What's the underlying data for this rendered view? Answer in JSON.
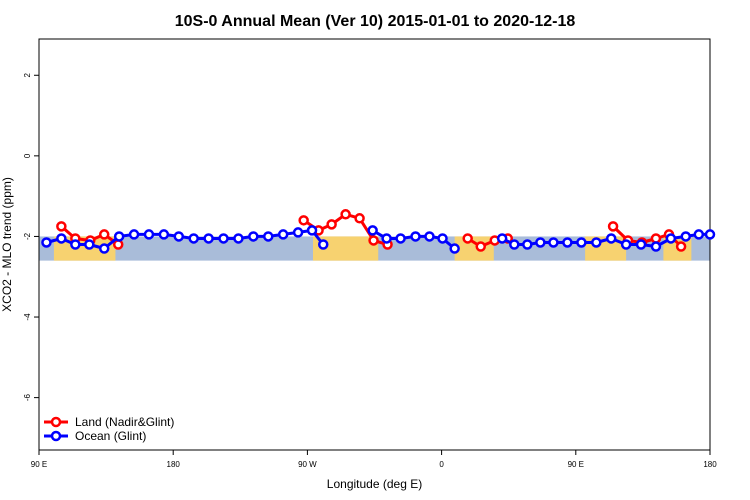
{
  "chart_data": {
    "type": "line",
    "title": "10S-0 Annual Mean (Ver 10)   2015-01-01 to 2020-12-18",
    "xlabel": "Longitude (deg E)",
    "ylabel": "XCO2 - MLO trend (ppm)",
    "xlim": [
      90,
      450
    ],
    "ylim": [
      -7.3,
      2.9
    ],
    "x_ticks": [
      {
        "value": 90,
        "label": "90 E"
      },
      {
        "value": 162,
        "label": "180"
      },
      {
        "value": 234,
        "label": "90 W"
      },
      {
        "value": 306,
        "label": "0"
      },
      {
        "value": 378,
        "label": "90 E"
      },
      {
        "value": 450,
        "label": "180"
      }
    ],
    "y_ticks": [
      {
        "value": 2,
        "label": "2"
      },
      {
        "value": 0,
        "label": "0"
      },
      {
        "value": -2,
        "label": "-2"
      },
      {
        "value": -4,
        "label": "-4"
      },
      {
        "value": -6,
        "label": "-6"
      }
    ],
    "background_band": {
      "y_range": [
        -2.6,
        -2.0
      ],
      "ocean_color": "#a9bcd9",
      "land_color": "#f7d270",
      "land_segments": [
        [
          98,
          131
        ],
        [
          237,
          272
        ],
        [
          313,
          334
        ],
        [
          383,
          405
        ],
        [
          425,
          440
        ]
      ]
    },
    "legend_position": "bottom-left",
    "series": [
      {
        "name": "Land (Nadir&Glint)",
        "color": "#ff0000",
        "points": [
          {
            "x": 102,
            "y": -1.75
          },
          {
            "x": 109.5,
            "y": -2.05
          },
          {
            "x": 117.5,
            "y": -2.1
          },
          {
            "x": 125,
            "y": -1.95
          },
          {
            "x": 132.5,
            "y": -2.2
          },
          null,
          {
            "x": 232,
            "y": -1.6
          },
          {
            "x": 240,
            "y": -1.85
          },
          {
            "x": 247,
            "y": -1.7
          },
          {
            "x": 254.5,
            "y": -1.45
          },
          {
            "x": 262,
            "y": -1.55
          },
          {
            "x": 269.5,
            "y": -2.1
          },
          {
            "x": 277,
            "y": -2.2
          },
          null,
          {
            "x": 320,
            "y": -2.05
          },
          {
            "x": 327,
            "y": -2.25
          },
          {
            "x": 334.5,
            "y": -2.1
          },
          {
            "x": 341.5,
            "y": -2.05
          },
          null,
          {
            "x": 398,
            "y": -1.75
          },
          {
            "x": 406,
            "y": -2.1
          },
          {
            "x": 413.5,
            "y": -2.15
          },
          {
            "x": 421,
            "y": -2.05
          },
          {
            "x": 428,
            "y": -1.95
          },
          {
            "x": 434.5,
            "y": -2.25
          }
        ]
      },
      {
        "name": "Ocean (Glint)",
        "color": "#0000ff",
        "points": [
          {
            "x": 94,
            "y": -2.15
          },
          {
            "x": 102,
            "y": -2.05
          },
          {
            "x": 109.5,
            "y": -2.2
          },
          {
            "x": 117,
            "y": -2.2
          },
          {
            "x": 125,
            "y": -2.3
          },
          {
            "x": 133,
            "y": -2.0
          },
          {
            "x": 141,
            "y": -1.95
          },
          {
            "x": 149,
            "y": -1.95
          },
          {
            "x": 157,
            "y": -1.95
          },
          {
            "x": 165,
            "y": -2.0
          },
          {
            "x": 173,
            "y": -2.05
          },
          {
            "x": 181,
            "y": -2.05
          },
          {
            "x": 189,
            "y": -2.05
          },
          {
            "x": 197,
            "y": -2.05
          },
          {
            "x": 205,
            "y": -2.0
          },
          {
            "x": 213,
            "y": -2.0
          },
          {
            "x": 221,
            "y": -1.95
          },
          {
            "x": 229,
            "y": -1.9
          },
          {
            "x": 236.5,
            "y": -1.85
          },
          {
            "x": 242.5,
            "y": -2.2
          },
          null,
          {
            "x": 269,
            "y": -1.85
          },
          {
            "x": 276.5,
            "y": -2.05
          },
          {
            "x": 284,
            "y": -2.05
          },
          {
            "x": 292,
            "y": -2.0
          },
          {
            "x": 299.5,
            "y": -2.0
          },
          {
            "x": 306.5,
            "y": -2.05
          },
          {
            "x": 313,
            "y": -2.3
          },
          null,
          {
            "x": 338.5,
            "y": -2.05
          },
          {
            "x": 345,
            "y": -2.2
          },
          {
            "x": 352,
            "y": -2.2
          },
          {
            "x": 359,
            "y": -2.15
          },
          {
            "x": 366,
            "y": -2.15
          },
          {
            "x": 373.5,
            "y": -2.15
          },
          {
            "x": 381,
            "y": -2.15
          },
          {
            "x": 389,
            "y": -2.15
          },
          {
            "x": 397,
            "y": -2.05
          },
          {
            "x": 405,
            "y": -2.2
          },
          {
            "x": 413,
            "y": -2.2
          },
          {
            "x": 421,
            "y": -2.25
          },
          {
            "x": 429,
            "y": -2.05
          },
          {
            "x": 437,
            "y": -2.0
          },
          {
            "x": 444,
            "y": -1.95
          },
          {
            "x": 450,
            "y": -1.95
          }
        ]
      }
    ]
  }
}
